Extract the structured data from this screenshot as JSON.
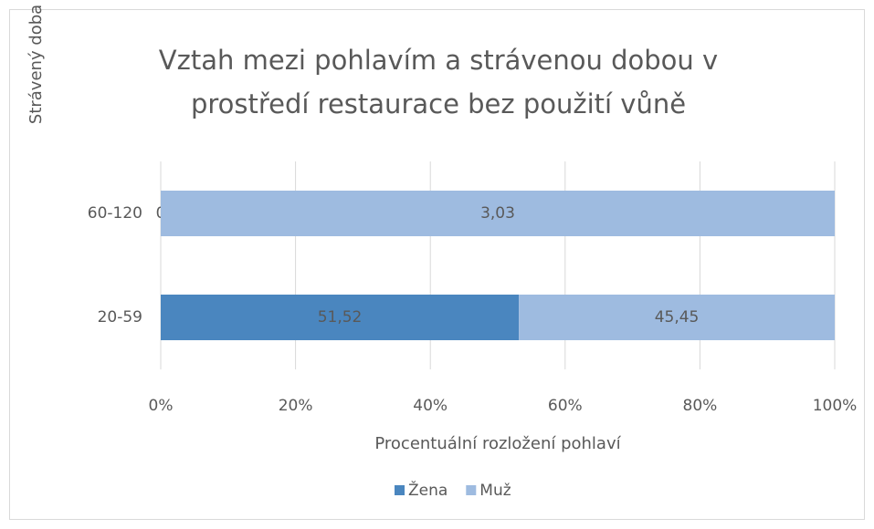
{
  "chart_data": {
    "type": "bar_stacked_percent",
    "orientation": "horizontal",
    "title": "Vztah mezi pohlavím a strávenou dobou v prostředí restaurace bez použití vůně",
    "x_label": "Procentuální rozložení pohlaví",
    "y_label": "Strávený doba (v minutách)",
    "categories": [
      "20-59",
      "60-120"
    ],
    "series": [
      {
        "name": "Žena",
        "color": "#4a86bf",
        "values": [
          51.52,
          0
        ],
        "value_labels": [
          "51,52",
          "0"
        ]
      },
      {
        "name": "Muž",
        "color": "#9ebbe0",
        "values": [
          45.45,
          3.03
        ],
        "value_labels": [
          "45,45",
          "3,03"
        ]
      }
    ],
    "xlim": [
      0,
      100
    ],
    "xticks": [
      {
        "value": 0,
        "label": "0%"
      },
      {
        "value": 20,
        "label": "20%"
      },
      {
        "value": 40,
        "label": "40%"
      },
      {
        "value": 60,
        "label": "60%"
      },
      {
        "value": 80,
        "label": "80%"
      },
      {
        "value": 100,
        "label": "100%"
      }
    ],
    "grid": true,
    "legend": "bottom"
  }
}
